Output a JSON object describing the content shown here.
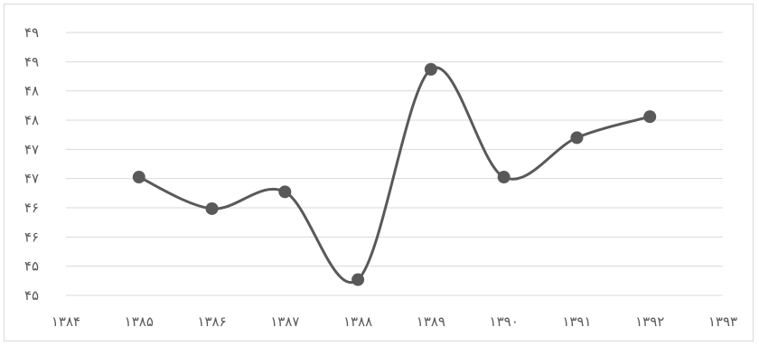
{
  "chart_data": {
    "type": "line",
    "title": "",
    "xlabel": "",
    "ylabel": "",
    "x": [
      1385,
      1386,
      1387,
      1388,
      1389,
      1390,
      1391,
      1392
    ],
    "series": [
      {
        "values": [
          46.75,
          46.15,
          46.47,
          44.8,
          48.8,
          46.75,
          47.5,
          47.9
        ]
      }
    ],
    "x_ticks": [
      "۱۳۸۴",
      "۱۳۸۵",
      "۱۳۸۶",
      "۱۳۸۷",
      "۱۳۸۸",
      "۱۳۸۹",
      "۱۳۹۰",
      "۱۳۹۱",
      "۱۳۹۲",
      "۱۳۹۳"
    ],
    "y_ticks": [
      "۴۵",
      "۴۵",
      "۴۶",
      "۴۶",
      "۴۷",
      "۴۷",
      "۴۸",
      "۴۸",
      "۴۹",
      "۴۹"
    ],
    "xlim": [
      1384,
      1393
    ],
    "ylim": [
      44.5,
      49.5
    ],
    "grid": true,
    "legend": "none",
    "colors": {
      "line": "#595959",
      "marker": "#595959",
      "grid": "#d9d9d9",
      "tick_text": "#595959"
    }
  }
}
